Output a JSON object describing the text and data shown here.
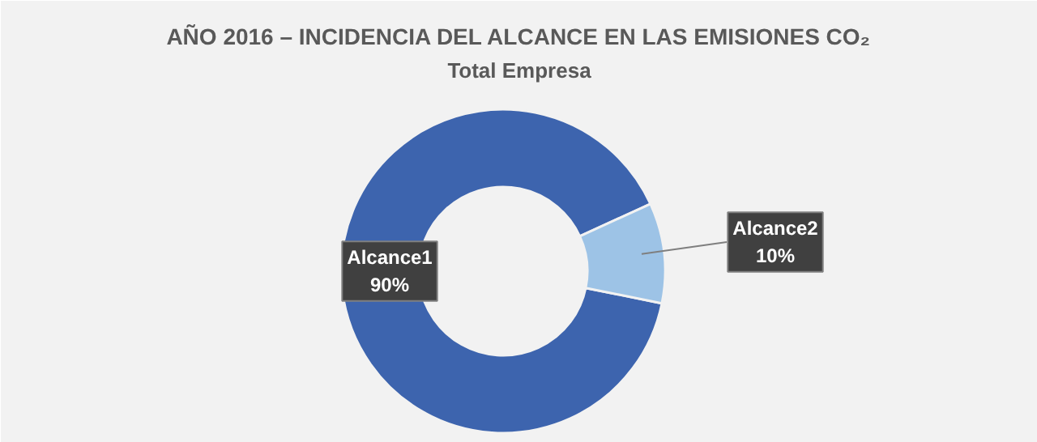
{
  "chart_data": {
    "type": "donut",
    "title": "AÑO 2016 – INCIDENCIA DEL ALCANCE EN LAS EMISIONES CO₂",
    "subtitle": "Total Empresa",
    "categories": [
      "Alcance1",
      "Alcance2"
    ],
    "values": [
      90,
      10
    ],
    "value_labels": [
      "90%",
      "10%"
    ],
    "colors": [
      "#3d64ae",
      "#9dc3e6"
    ]
  }
}
